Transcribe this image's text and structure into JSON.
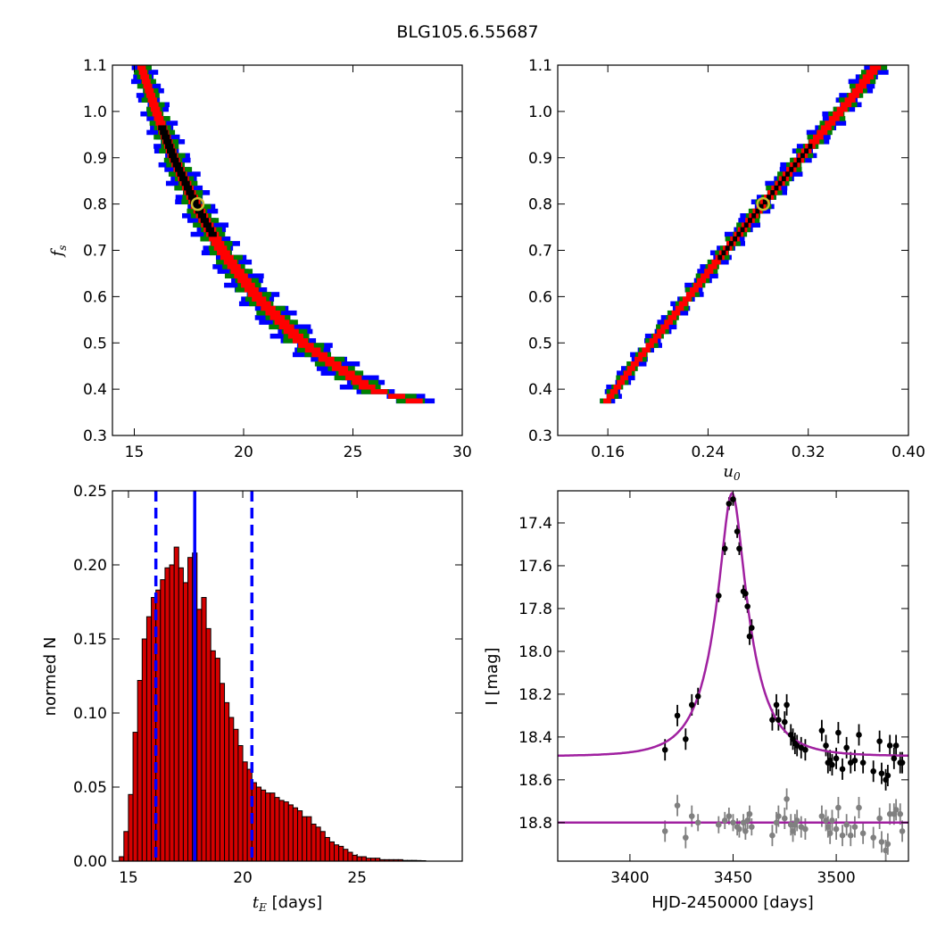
{
  "figure": {
    "title": "BLG105.6.55687"
  },
  "chart_data": [
    {
      "type": "heatmap",
      "panel": "tE-fs",
      "title": "",
      "ylabel": "f",
      "ylabel_sub": "s",
      "xlabel": "",
      "xlim": [
        14,
        30
      ],
      "ylim": [
        0.3,
        1.1
      ],
      "xticks": [
        "15",
        "20",
        "25",
        "30"
      ],
      "yticks": [
        "0.3",
        "0.4",
        "0.5",
        "0.6",
        "0.7",
        "0.8",
        "0.9",
        "1.0",
        "1.1"
      ],
      "xtick_values": [
        15,
        20,
        25,
        30
      ],
      "ytick_values": [
        0.3,
        0.4,
        0.5,
        0.6,
        0.7,
        0.8,
        0.9,
        1.0,
        1.1
      ],
      "ridge": [
        [
          15.3,
          1.1
        ],
        [
          16.0,
          1.0
        ],
        [
          16.8,
          0.9
        ],
        [
          17.8,
          0.8
        ],
        [
          19.0,
          0.7
        ],
        [
          20.6,
          0.6
        ],
        [
          22.7,
          0.5
        ],
        [
          25.8,
          0.4
        ],
        [
          28.2,
          0.37
        ]
      ],
      "best_fit": {
        "x": 17.9,
        "y": 0.8
      },
      "colors": {
        "blue": "#0000ff",
        "green": "#008000",
        "red": "#ff0000",
        "black": "#000000"
      }
    },
    {
      "type": "heatmap",
      "panel": "u0-fs",
      "title": "",
      "xlabel": "u",
      "xlabel_sub": "0",
      "ylabel": "",
      "xlim": [
        0.12,
        0.4
      ],
      "ylim": [
        0.3,
        1.1
      ],
      "xticks": [
        "0.16",
        "0.24",
        "0.32",
        "0.40"
      ],
      "yticks": [
        "0.3",
        "0.4",
        "0.5",
        "0.6",
        "0.7",
        "0.8",
        "0.9",
        "1.0",
        "1.1"
      ],
      "xtick_values": [
        0.16,
        0.24,
        0.32,
        0.4
      ],
      "ytick_values": [
        0.3,
        0.4,
        0.5,
        0.6,
        0.7,
        0.8,
        0.9,
        1.0,
        1.1
      ],
      "ridge": [
        [
          0.158,
          0.37
        ],
        [
          0.18,
          0.45
        ],
        [
          0.21,
          0.55
        ],
        [
          0.245,
          0.67
        ],
        [
          0.284,
          0.8
        ],
        [
          0.32,
          0.92
        ],
        [
          0.355,
          1.03
        ],
        [
          0.375,
          1.1
        ]
      ],
      "best_fit": {
        "x": 0.284,
        "y": 0.8
      },
      "colors": {
        "blue": "#0000ff",
        "green": "#008000",
        "red": "#ff0000",
        "black": "#000000"
      }
    },
    {
      "type": "bar",
      "panel": "tE-histogram",
      "title": "",
      "xlabel": "t",
      "xlabel_sub": "E",
      "xlabel_unit": " [days]",
      "ylabel": "normed N",
      "xlim": [
        14.3,
        29.6
      ],
      "ylim": [
        0,
        0.25
      ],
      "xticks": [
        "15",
        "20",
        "25"
      ],
      "xtick_values": [
        15,
        20,
        25
      ],
      "yticks": [
        "0.00",
        "0.05",
        "0.10",
        "0.15",
        "0.20",
        "0.25"
      ],
      "ytick_values": [
        0,
        0.05,
        0.1,
        0.15,
        0.2,
        0.25
      ],
      "bin_start": 14.6,
      "bin_width": 0.2,
      "values": [
        0.003,
        0.02,
        0.045,
        0.087,
        0.122,
        0.15,
        0.165,
        0.178,
        0.183,
        0.19,
        0.198,
        0.2,
        0.212,
        0.198,
        0.188,
        0.205,
        0.208,
        0.17,
        0.178,
        0.157,
        0.142,
        0.137,
        0.12,
        0.107,
        0.097,
        0.089,
        0.078,
        0.067,
        0.062,
        0.053,
        0.05,
        0.048,
        0.046,
        0.046,
        0.043,
        0.041,
        0.04,
        0.038,
        0.036,
        0.034,
        0.03,
        0.03,
        0.025,
        0.023,
        0.02,
        0.016,
        0.013,
        0.011,
        0.01,
        0.008,
        0.006,
        0.004,
        0.003,
        0.003,
        0.002,
        0.002,
        0.002,
        0.001,
        0.001,
        0.001,
        0.001,
        0.001,
        0.0005,
        0.0005,
        0.0005,
        0.0004,
        0.0003
      ],
      "median": 17.9,
      "lower": 16.2,
      "upper": 20.4,
      "colors": {
        "bar": "#d40000",
        "line": "#0000ff"
      }
    },
    {
      "type": "scatter",
      "panel": "light-curve",
      "title": "",
      "xlabel": "HJD-2450000 [days]",
      "ylabel": "I [mag]",
      "xlim": [
        3365,
        3535
      ],
      "ylim": [
        18.98,
        17.25
      ],
      "y_inverted": true,
      "xticks": [
        "3400",
        "3450",
        "3500"
      ],
      "xtick_values": [
        3400,
        3450,
        3500
      ],
      "yticks": [
        "17.4",
        "17.6",
        "17.8",
        "18.0",
        "18.2",
        "18.4",
        "18.6",
        "18.8"
      ],
      "ytick_values": [
        17.4,
        17.6,
        17.8,
        18.0,
        18.2,
        18.4,
        18.6,
        18.8
      ],
      "model": {
        "t0": 3449.5,
        "tE": 17.9,
        "u0": 0.284,
        "fs": 0.8,
        "baseline": 18.49,
        "flat_baseline": 18.8
      },
      "series": [
        {
          "color": "#000000",
          "points": [
            [
              3417,
              18.46,
              0.05
            ],
            [
              3423,
              18.3,
              0.05
            ],
            [
              3427,
              18.41,
              0.05
            ],
            [
              3430,
              18.25,
              0.05
            ],
            [
              3433,
              18.21,
              0.04
            ],
            [
              3443,
              17.74,
              0.03
            ],
            [
              3446,
              17.52,
              0.03
            ],
            [
              3448,
              17.31,
              0.03
            ],
            [
              3450,
              17.29,
              0.03
            ],
            [
              3452,
              17.44,
              0.03
            ],
            [
              3453,
              17.52,
              0.03
            ],
            [
              3455,
              17.72,
              0.03
            ],
            [
              3456,
              17.73,
              0.03
            ],
            [
              3457,
              17.79,
              0.03
            ],
            [
              3458,
              17.93,
              0.04
            ],
            [
              3459,
              17.89,
              0.04
            ],
            [
              3469,
              18.32,
              0.05
            ],
            [
              3471,
              18.25,
              0.05
            ],
            [
              3472,
              18.32,
              0.05
            ],
            [
              3475,
              18.33,
              0.05
            ],
            [
              3476,
              18.25,
              0.05
            ],
            [
              3478,
              18.39,
              0.05
            ],
            [
              3479,
              18.41,
              0.05
            ],
            [
              3480,
              18.43,
              0.05
            ],
            [
              3481,
              18.44,
              0.05
            ],
            [
              3483,
              18.45,
              0.05
            ],
            [
              3485,
              18.46,
              0.05
            ],
            [
              3493,
              18.37,
              0.05
            ],
            [
              3495,
              18.44,
              0.05
            ],
            [
              3496,
              18.52,
              0.05
            ],
            [
              3497,
              18.51,
              0.05
            ],
            [
              3498,
              18.53,
              0.05
            ],
            [
              3500,
              18.5,
              0.05
            ],
            [
              3501,
              18.38,
              0.05
            ],
            [
              3503,
              18.55,
              0.05
            ],
            [
              3505,
              18.45,
              0.05
            ],
            [
              3507,
              18.52,
              0.05
            ],
            [
              3509,
              18.51,
              0.05
            ],
            [
              3511,
              18.39,
              0.05
            ],
            [
              3513,
              18.52,
              0.05
            ],
            [
              3518,
              18.56,
              0.05
            ],
            [
              3521,
              18.42,
              0.05
            ],
            [
              3522,
              18.57,
              0.05
            ],
            [
              3524,
              18.6,
              0.05
            ],
            [
              3525,
              18.58,
              0.05
            ],
            [
              3526,
              18.44,
              0.05
            ],
            [
              3528,
              18.5,
              0.05
            ],
            [
              3529,
              18.44,
              0.05
            ],
            [
              3531,
              18.52,
              0.05
            ],
            [
              3532,
              18.52,
              0.05
            ]
          ]
        },
        {
          "color": "#808080",
          "points": [
            [
              3417,
              18.84,
              0.05
            ],
            [
              3423,
              18.72,
              0.05
            ],
            [
              3427,
              18.87,
              0.05
            ],
            [
              3430,
              18.77,
              0.05
            ],
            [
              3433,
              18.8,
              0.04
            ],
            [
              3443,
              18.81,
              0.04
            ],
            [
              3446,
              18.79,
              0.04
            ],
            [
              3448,
              18.77,
              0.04
            ],
            [
              3450,
              18.8,
              0.04
            ],
            [
              3452,
              18.82,
              0.04
            ],
            [
              3453,
              18.83,
              0.04
            ],
            [
              3455,
              18.8,
              0.04
            ],
            [
              3456,
              18.84,
              0.04
            ],
            [
              3457,
              18.79,
              0.04
            ],
            [
              3458,
              18.76,
              0.04
            ],
            [
              3459,
              18.82,
              0.04
            ],
            [
              3469,
              18.86,
              0.05
            ],
            [
              3471,
              18.8,
              0.05
            ],
            [
              3472,
              18.77,
              0.05
            ],
            [
              3475,
              18.78,
              0.05
            ],
            [
              3476,
              18.69,
              0.05
            ],
            [
              3478,
              18.81,
              0.05
            ],
            [
              3479,
              18.84,
              0.05
            ],
            [
              3480,
              18.81,
              0.05
            ],
            [
              3481,
              18.79,
              0.05
            ],
            [
              3483,
              18.82,
              0.05
            ],
            [
              3485,
              18.83,
              0.05
            ],
            [
              3493,
              18.77,
              0.05
            ],
            [
              3495,
              18.79,
              0.05
            ],
            [
              3496,
              18.82,
              0.05
            ],
            [
              3497,
              18.85,
              0.05
            ],
            [
              3498,
              18.79,
              0.05
            ],
            [
              3500,
              18.83,
              0.05
            ],
            [
              3501,
              18.73,
              0.05
            ],
            [
              3503,
              18.86,
              0.05
            ],
            [
              3505,
              18.81,
              0.05
            ],
            [
              3507,
              18.86,
              0.05
            ],
            [
              3509,
              18.82,
              0.05
            ],
            [
              3511,
              18.73,
              0.05
            ],
            [
              3513,
              18.85,
              0.05
            ],
            [
              3518,
              18.87,
              0.05
            ],
            [
              3521,
              18.78,
              0.05
            ],
            [
              3522,
              18.89,
              0.05
            ],
            [
              3524,
              18.93,
              0.05
            ],
            [
              3525,
              18.9,
              0.05
            ],
            [
              3526,
              18.76,
              0.05
            ],
            [
              3528,
              18.76,
              0.05
            ],
            [
              3529,
              18.74,
              0.05
            ],
            [
              3531,
              18.76,
              0.05
            ],
            [
              3532,
              18.84,
              0.05
            ]
          ]
        }
      ],
      "colors": {
        "model": "#a020a0",
        "error_gray": "#808080"
      }
    }
  ]
}
